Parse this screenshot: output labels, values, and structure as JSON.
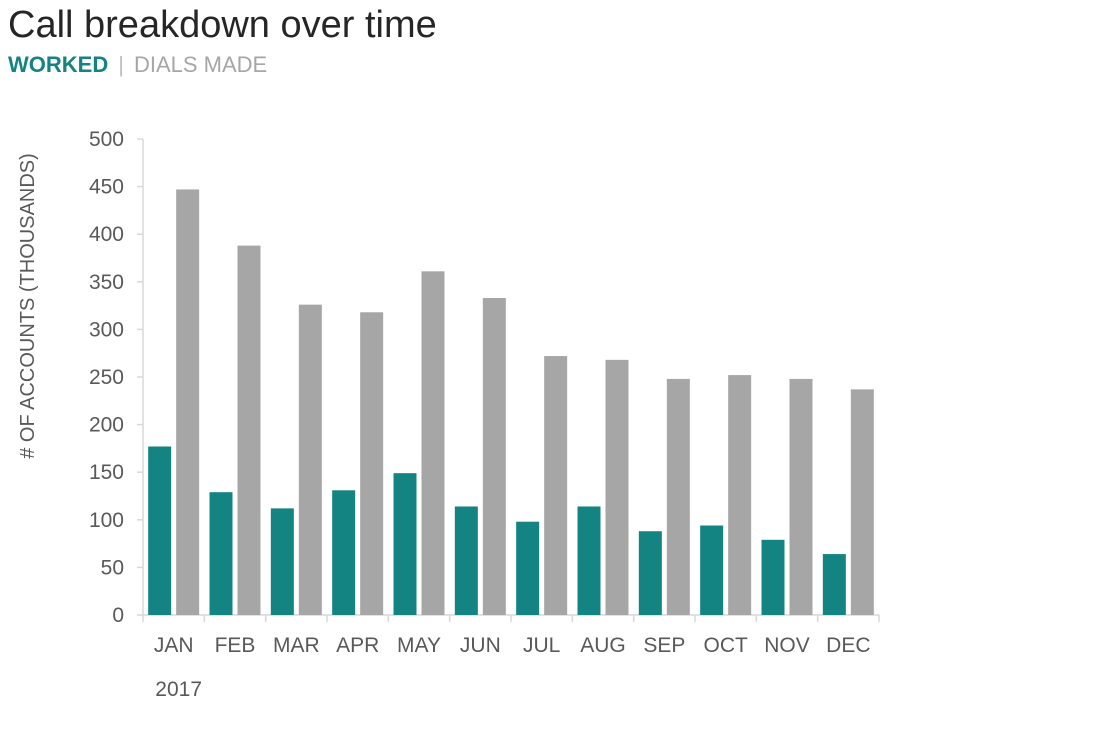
{
  "header": {
    "title": "Call breakdown over time",
    "legend_worked": "WORKED",
    "legend_separator": "|",
    "legend_dials": "DIALS MADE"
  },
  "chart_data": {
    "type": "bar",
    "title": "Call breakdown over time",
    "xlabel": "2017",
    "ylabel": "# OF ACCOUNTS (THOUSANDS)",
    "ylim": [
      0,
      500
    ],
    "yticks": [
      0,
      50,
      100,
      150,
      200,
      250,
      300,
      350,
      400,
      450,
      500
    ],
    "categories": [
      "JAN",
      "FEB",
      "MAR",
      "APR",
      "MAY",
      "JUN",
      "JUL",
      "AUG",
      "SEP",
      "OCT",
      "NOV",
      "DEC"
    ],
    "series": [
      {
        "name": "WORKED",
        "color": "#148482",
        "values": [
          177,
          129,
          112,
          131,
          149,
          114,
          98,
          114,
          88,
          94,
          79,
          64
        ]
      },
      {
        "name": "DIALS MADE",
        "color": "#a6a6a6",
        "values": [
          447,
          388,
          326,
          318,
          361,
          333,
          272,
          268,
          248,
          252,
          248,
          237
        ]
      }
    ],
    "grid": false,
    "legend": "top-left (in subtitle)"
  }
}
